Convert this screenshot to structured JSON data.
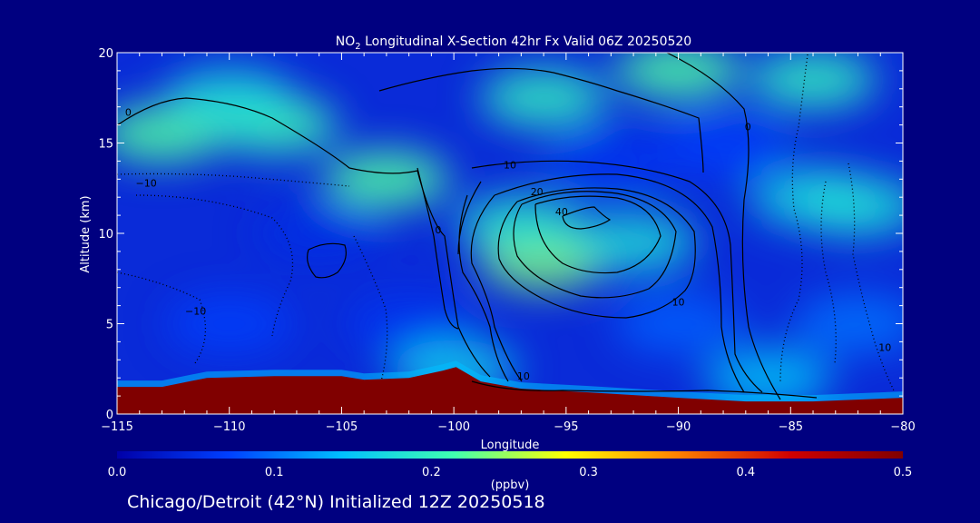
{
  "chart_data": {
    "type": "heatmap",
    "title": {
      "prefix": "NO",
      "subscript": "2",
      "suffix": " Longitudinal X-Section 42hr  Fx Valid 06Z 20250520"
    },
    "xlabel": "Longitude",
    "ylabel": "Altitude (km)",
    "xlim": [
      -115,
      -80
    ],
    "ylim": [
      0,
      20
    ],
    "x_ticks": [
      -115,
      -110,
      -105,
      -100,
      -95,
      -90,
      -85,
      -80
    ],
    "x_tick_labels": [
      "−115",
      "−110",
      "−105",
      "−100",
      "−95",
      "−90",
      "−85",
      "−80"
    ],
    "y_ticks": [
      0,
      5,
      10,
      15,
      20
    ],
    "y_tick_labels": [
      "0",
      "5",
      "10",
      "15",
      "20"
    ],
    "grid": false,
    "colorbar": {
      "label": "(ppbv)",
      "range": [
        0.0,
        0.5
      ],
      "ticks": [
        0.0,
        0.1,
        0.2,
        0.3,
        0.4,
        0.5
      ],
      "tick_labels": [
        "0.0",
        "0.1",
        "0.2",
        "0.3",
        "0.4",
        "0.5"
      ],
      "colors": [
        "#0000a8",
        "#0040ff",
        "#00c0ff",
        "#40ffb0",
        "#ffff00",
        "#ff8000",
        "#d00000",
        "#800000"
      ]
    },
    "background_field": [
      {
        "x": -113,
        "y": 15.5,
        "value": 0.22
      },
      {
        "x": -108,
        "y": 16.0,
        "value": 0.21
      },
      {
        "x": -103,
        "y": 13.0,
        "value": 0.22
      },
      {
        "x": -110,
        "y": 17.5,
        "value": 0.18
      },
      {
        "x": -90,
        "y": 19.0,
        "value": 0.22
      },
      {
        "x": -84,
        "y": 18.5,
        "value": 0.2
      },
      {
        "x": -96,
        "y": 17.5,
        "value": 0.2
      },
      {
        "x": -96,
        "y": 8.5,
        "value": 0.24
      },
      {
        "x": -97,
        "y": 10.5,
        "value": 0.19
      },
      {
        "x": -92,
        "y": 9.5,
        "value": 0.18
      },
      {
        "x": -84,
        "y": 12.0,
        "value": 0.17
      },
      {
        "x": -82,
        "y": 11.5,
        "value": 0.18
      },
      {
        "x": -106,
        "y": 10.0,
        "value": 0.05
      },
      {
        "x": -93,
        "y": 14.0,
        "value": 0.06
      },
      {
        "x": -88,
        "y": 14.8,
        "value": 0.07
      },
      {
        "x": -110,
        "y": 5.0,
        "value": 0.07
      },
      {
        "x": -102,
        "y": 5.0,
        "value": 0.06
      },
      {
        "x": -90,
        "y": 5.0,
        "value": 0.09
      },
      {
        "x": -82,
        "y": 5.0,
        "value": 0.1
      },
      {
        "x": -100,
        "y": 2.5,
        "value": 0.16
      },
      {
        "x": -86,
        "y": 2.0,
        "value": 0.15
      }
    ],
    "surface_layer": {
      "value": 0.5,
      "points": [
        {
          "x": -115,
          "y": 1.5
        },
        {
          "x": -113,
          "y": 1.5
        },
        {
          "x": -111,
          "y": 2.0
        },
        {
          "x": -108,
          "y": 2.1
        },
        {
          "x": -105,
          "y": 2.1
        },
        {
          "x": -104,
          "y": 1.9
        },
        {
          "x": -102,
          "y": 2.0
        },
        {
          "x": -100.5,
          "y": 2.4
        },
        {
          "x": -99.9,
          "y": 2.6
        },
        {
          "x": -98.8,
          "y": 1.8
        },
        {
          "x": -97,
          "y": 1.4
        },
        {
          "x": -94,
          "y": 1.2
        },
        {
          "x": -90,
          "y": 0.9
        },
        {
          "x": -87,
          "y": 0.7
        },
        {
          "x": -84,
          "y": 0.7
        },
        {
          "x": -82,
          "y": 0.8
        },
        {
          "x": -80,
          "y": 0.9
        }
      ]
    },
    "contour_labels": [
      {
        "text": "0",
        "x": -114.5,
        "y": 16.5
      },
      {
        "text": "−10",
        "x": -113.7,
        "y": 12.6
      },
      {
        "text": "−10",
        "x": -111.5,
        "y": 5.5
      },
      {
        "text": "10",
        "x": -97.5,
        "y": 13.6
      },
      {
        "text": "20",
        "x": -96.3,
        "y": 12.1
      },
      {
        "text": "40",
        "x": -95.2,
        "y": 11.0
      },
      {
        "text": "0",
        "x": -100.7,
        "y": 10.0
      },
      {
        "text": "0",
        "x": -86.9,
        "y": 15.7
      },
      {
        "text": "10",
        "x": -90.0,
        "y": 6.0
      },
      {
        "text": "10",
        "x": -96.9,
        "y": 1.9
      },
      {
        "text": "10",
        "x": -80.8,
        "y": 3.5
      }
    ]
  },
  "footer": "Chicago/Detroit (42°N) Initialized 12Z 20250518"
}
